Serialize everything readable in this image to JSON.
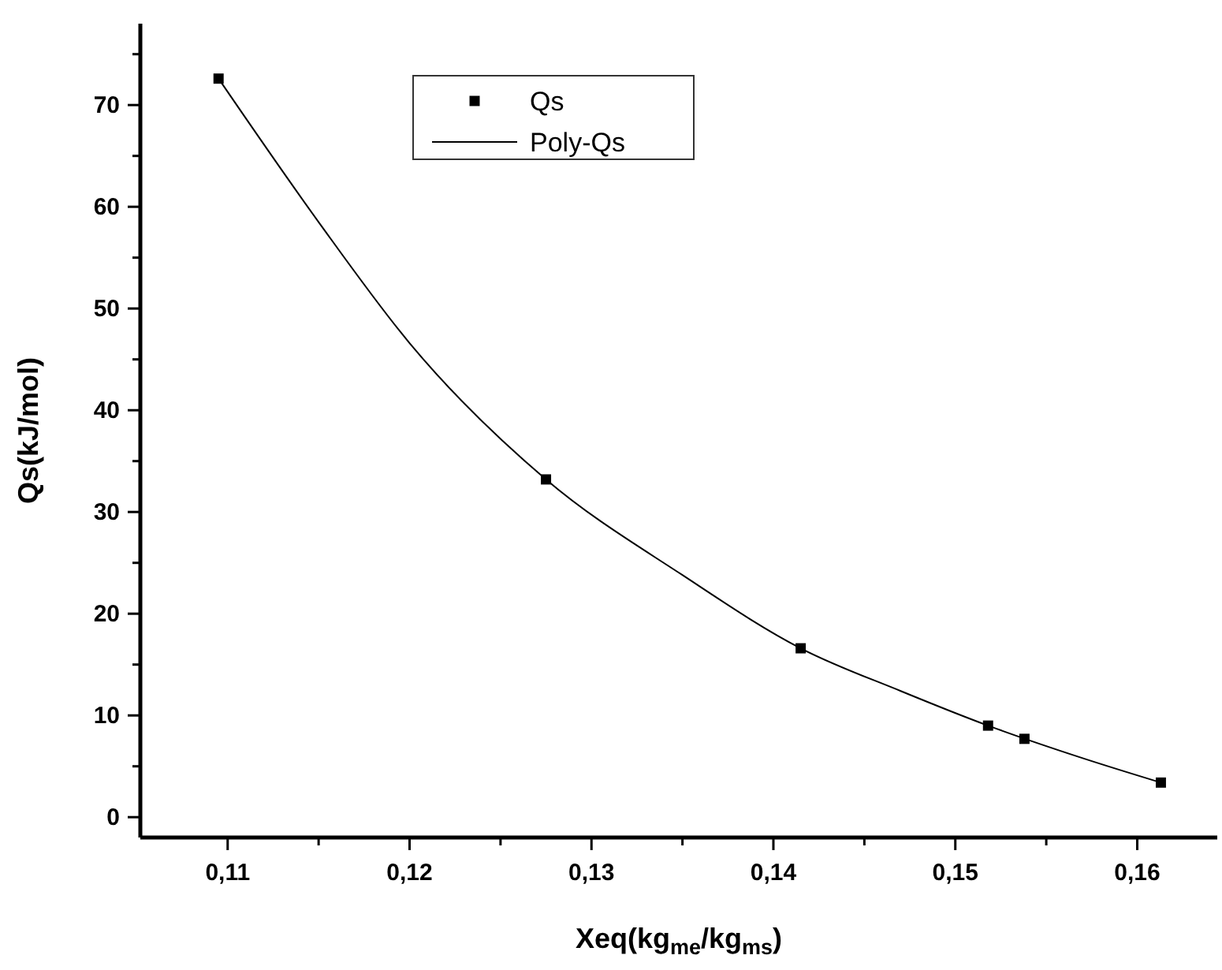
{
  "chart_data": {
    "type": "scatter",
    "xlabel": "Xeq(kg$_{me}$/kg$_{ms}$)",
    "ylabel": "Qs(kJ/mol)",
    "xlim": [
      0.1052,
      0.1644
    ],
    "ylim": [
      -2,
      78
    ],
    "xticks": [
      {
        "value": 0.11,
        "label": "0,11"
      },
      {
        "value": 0.115,
        "label": null
      },
      {
        "value": 0.12,
        "label": "0,12"
      },
      {
        "value": 0.125,
        "label": null
      },
      {
        "value": 0.13,
        "label": "0,13"
      },
      {
        "value": 0.135,
        "label": null
      },
      {
        "value": 0.14,
        "label": "0,14"
      },
      {
        "value": 0.145,
        "label": null
      },
      {
        "value": 0.15,
        "label": "0,15"
      },
      {
        "value": 0.155,
        "label": null
      },
      {
        "value": 0.16,
        "label": "0,16"
      }
    ],
    "yticks": [
      0,
      {
        "value": 5,
        "label": null
      },
      10,
      {
        "value": 15,
        "label": null
      },
      20,
      {
        "value": 25,
        "label": null
      },
      30,
      {
        "value": 35,
        "label": null
      },
      40,
      {
        "value": 45,
        "label": null
      },
      50,
      {
        "value": 55,
        "label": null
      },
      60,
      {
        "value": 65,
        "label": null
      },
      70,
      {
        "value": 75,
        "label": null
      }
    ],
    "grid": false,
    "legend": "top",
    "series": [
      {
        "name": "Qs",
        "marker": "square",
        "color": "#000000",
        "x": [
          0.1095,
          0.1275,
          0.1415,
          0.1518,
          0.1538,
          0.1613
        ],
        "values": [
          72.6,
          33.2,
          16.6,
          9.0,
          7.7,
          3.4
        ]
      },
      {
        "name": "Poly-Qs",
        "type": "line",
        "marker": "none",
        "color": "#000000",
        "x": [
          0.1095,
          0.115,
          0.12,
          0.1275,
          0.135,
          0.1415,
          0.147,
          0.1518,
          0.157,
          0.1613
        ],
        "values": [
          72.6,
          58.5,
          46.6,
          33.2,
          23.8,
          16.6,
          12.4,
          9.0,
          5.8,
          3.4
        ]
      }
    ]
  }
}
